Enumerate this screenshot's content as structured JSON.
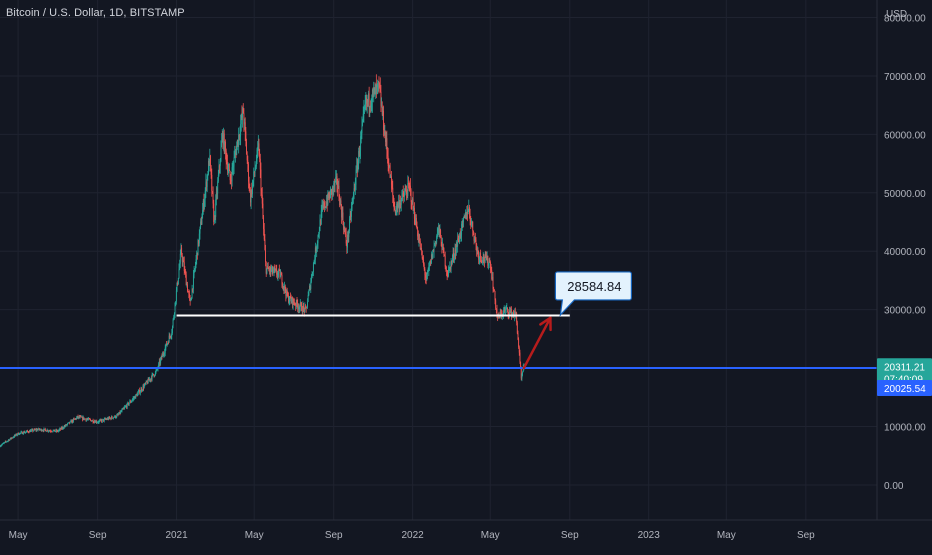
{
  "header": {
    "title": "Bitcoin / U.S. Dollar, 1D, BITSTAMP",
    "currency": "USD"
  },
  "colors": {
    "background": "#131722",
    "grid": "#1f2330",
    "up": "#26a69a",
    "down": "#ef5350",
    "support_line": "#ffffff",
    "price_line": "#2962ff",
    "arrow": "#b71c1c",
    "callout_bg": "#e3f2fd",
    "callout_border": "#1565c0"
  },
  "chart_data": {
    "type": "candlestick",
    "x_ticks": [
      "May",
      "Sep",
      "2021",
      "May",
      "Sep",
      "2022",
      "May",
      "Sep",
      "2023",
      "May",
      "Sep"
    ],
    "x_tick_dates": [
      "2020-05-01",
      "2020-09-01",
      "2021-01-01",
      "2021-05-01",
      "2021-09-01",
      "2022-01-01",
      "2022-05-01",
      "2022-09-01",
      "2023-01-01",
      "2023-05-01",
      "2023-09-01"
    ],
    "y_ticks": [
      "0.00",
      "10000.00",
      "20000.00",
      "30000.00",
      "40000.00",
      "50000.00",
      "60000.00",
      "70000.00",
      "80000.00"
    ],
    "ylim": [
      -6000,
      83000
    ],
    "price_path": [
      {
        "date": "2020-04-03",
        "price": 6700
      },
      {
        "date": "2020-05-01",
        "price": 8800
      },
      {
        "date": "2020-06-01",
        "price": 9500
      },
      {
        "date": "2020-07-01",
        "price": 9200
      },
      {
        "date": "2020-08-01",
        "price": 11600
      },
      {
        "date": "2020-09-01",
        "price": 10800
      },
      {
        "date": "2020-10-01",
        "price": 11800
      },
      {
        "date": "2020-11-01",
        "price": 15500
      },
      {
        "date": "2020-12-01",
        "price": 19500
      },
      {
        "date": "2020-12-25",
        "price": 26500
      },
      {
        "date": "2021-01-08",
        "price": 40000
      },
      {
        "date": "2021-01-22",
        "price": 31000
      },
      {
        "date": "2021-02-08",
        "price": 45000
      },
      {
        "date": "2021-02-21",
        "price": 56000
      },
      {
        "date": "2021-02-28",
        "price": 45000
      },
      {
        "date": "2021-03-13",
        "price": 60000
      },
      {
        "date": "2021-03-25",
        "price": 52000
      },
      {
        "date": "2021-04-14",
        "price": 64000
      },
      {
        "date": "2021-04-25",
        "price": 49000
      },
      {
        "date": "2021-05-08",
        "price": 58000
      },
      {
        "date": "2021-05-19",
        "price": 37000
      },
      {
        "date": "2021-06-10",
        "price": 36000
      },
      {
        "date": "2021-06-22",
        "price": 32000
      },
      {
        "date": "2021-07-20",
        "price": 29800
      },
      {
        "date": "2021-08-14",
        "price": 47000
      },
      {
        "date": "2021-09-06",
        "price": 52000
      },
      {
        "date": "2021-09-21",
        "price": 41000
      },
      {
        "date": "2021-10-20",
        "price": 65000
      },
      {
        "date": "2021-11-10",
        "price": 68000
      },
      {
        "date": "2021-11-26",
        "price": 54000
      },
      {
        "date": "2021-12-04",
        "price": 47000
      },
      {
        "date": "2021-12-27",
        "price": 51000
      },
      {
        "date": "2022-01-22",
        "price": 35000
      },
      {
        "date": "2022-02-10",
        "price": 44000
      },
      {
        "date": "2022-02-24",
        "price": 36000
      },
      {
        "date": "2022-03-28",
        "price": 47500
      },
      {
        "date": "2022-04-12",
        "price": 39500
      },
      {
        "date": "2022-05-01",
        "price": 38000
      },
      {
        "date": "2022-05-12",
        "price": 28500
      },
      {
        "date": "2022-05-25",
        "price": 30000
      },
      {
        "date": "2022-06-10",
        "price": 29000
      },
      {
        "date": "2022-06-18",
        "price": 18000
      },
      {
        "date": "2022-06-22",
        "price": 20311.21
      }
    ],
    "candle_count": 800,
    "support_level": 29000,
    "support_range": [
      "2021-01-01",
      "2022-09-01"
    ],
    "current_price": 20311.21,
    "price_label": "20311.21",
    "countdown": "07:40:09",
    "horizontal_line_price": 20025.54,
    "horizontal_line_label": "20025.54",
    "callout_text": "28584.84",
    "callout_price": 28584.84,
    "arrow": {
      "from_date": "2022-06-22",
      "from_price": 20000,
      "to_date": "2022-08-02",
      "to_price": 28600
    },
    "x_axis_range": [
      "2020-04-03",
      "2023-12-20"
    ]
  }
}
